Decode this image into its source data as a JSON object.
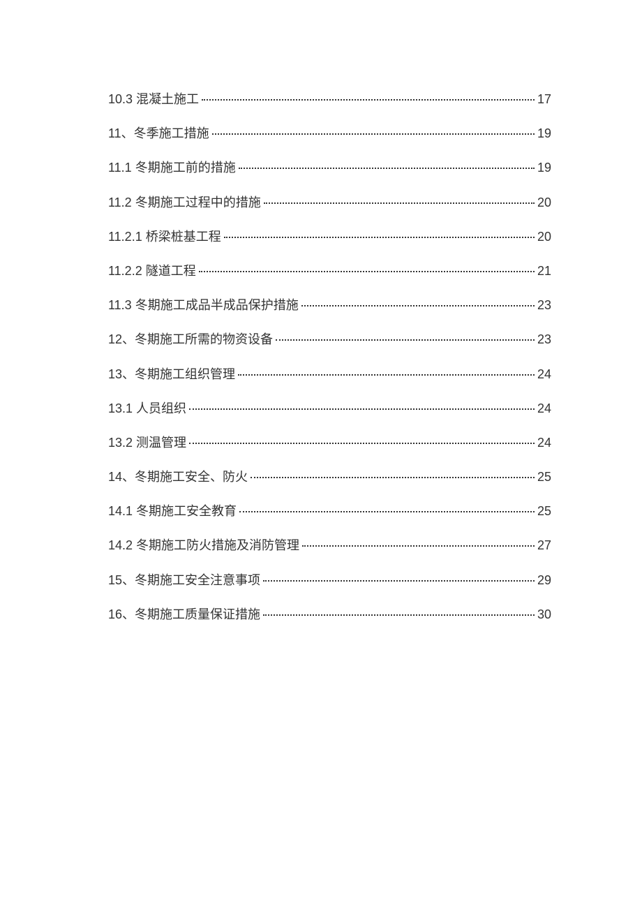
{
  "toc": {
    "entries": [
      {
        "title": "10.3 混凝土施工",
        "page": "17"
      },
      {
        "title": "11、冬季施工措施",
        "page": "19"
      },
      {
        "title": "11.1 冬期施工前的措施",
        "page": "19"
      },
      {
        "title": "11.2 冬期施工过程中的措施",
        "page": "20"
      },
      {
        "title": "11.2.1 桥梁桩基工程",
        "page": "20"
      },
      {
        "title": "11.2.2 隧道工程",
        "page": "21"
      },
      {
        "title": "11.3 冬期施工成品半成品保护措施",
        "page": "23"
      },
      {
        "title": "12、冬期施工所需的物资设备",
        "page": "23"
      },
      {
        "title": "13、冬期施工组织管理",
        "page": "24"
      },
      {
        "title": "13.1  人员组织",
        "page": "24"
      },
      {
        "title": "13.2 测温管理",
        "page": "24"
      },
      {
        "title": "14、冬期施工安全、防火",
        "page": "25"
      },
      {
        "title": "14.1 冬期施工安全教育",
        "page": "25"
      },
      {
        "title": "14.2  冬期施工防火措施及消防管理",
        "page": "27"
      },
      {
        "title": "15、冬期施工安全注意事项",
        "page": "29"
      },
      {
        "title": "16、冬期施工质量保证措施",
        "page": "30"
      }
    ],
    "text_color": "#333333",
    "background_color": "#ffffff",
    "font_size": 18,
    "line_spacing": 24
  }
}
